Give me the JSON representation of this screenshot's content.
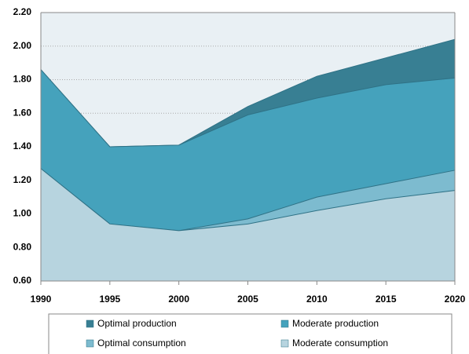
{
  "chart_data": {
    "type": "area",
    "x": [
      1990,
      1995,
      2000,
      2005,
      2010,
      2015,
      2020
    ],
    "xlim": [
      1990,
      2020
    ],
    "xticks": [
      1990,
      1995,
      2000,
      2005,
      2010,
      2015,
      2020
    ],
    "ylim": [
      0.6,
      2.2
    ],
    "yticks": [
      {
        "value": 0.6,
        "label": "0.60"
      },
      {
        "value": 0.8,
        "label": "0.80"
      },
      {
        "value": 1.0,
        "label": "1.00"
      },
      {
        "value": 1.2,
        "label": "1.20"
      },
      {
        "value": 1.4,
        "label": "1.40"
      },
      {
        "value": 1.6,
        "label": "1.60"
      },
      {
        "value": 1.8,
        "label": "1.80"
      },
      {
        "value": 2.0,
        "label": "2.00"
      },
      {
        "value": 2.2,
        "label": "2.20"
      }
    ],
    "grid": true,
    "legend": "bottom",
    "series": [
      {
        "name": "Optimal production",
        "color": "#387f93",
        "values": [
          1.86,
          1.4,
          1.41,
          1.64,
          1.82,
          1.93,
          2.04
        ]
      },
      {
        "name": "Moderate production",
        "color": "#45a2bc",
        "values": [
          1.86,
          1.4,
          1.41,
          1.59,
          1.69,
          1.77,
          1.81
        ]
      },
      {
        "name": "Optimal consumption",
        "color": "#7dbbcf",
        "values": [
          1.27,
          0.94,
          0.9,
          0.97,
          1.1,
          1.18,
          1.26
        ]
      },
      {
        "name": "Moderate consumption",
        "color": "#b7d4df",
        "values": [
          1.27,
          0.94,
          0.9,
          0.94,
          1.02,
          1.09,
          1.14
        ]
      }
    ]
  }
}
